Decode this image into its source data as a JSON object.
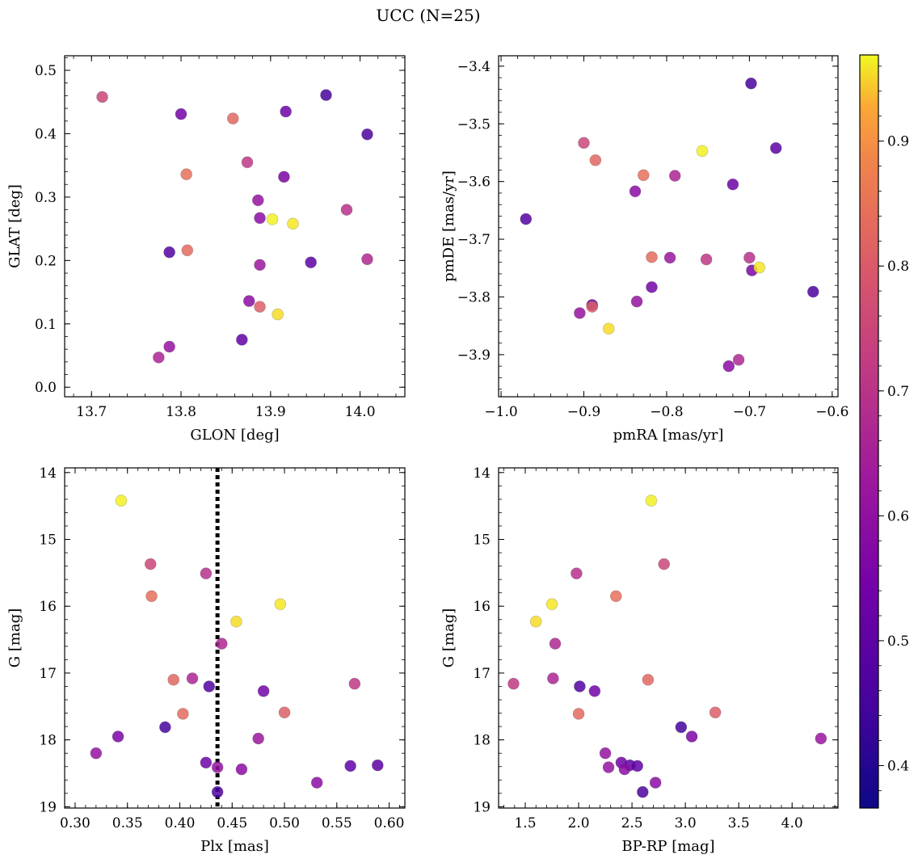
{
  "chart_data": {
    "type": "scatter",
    "title": "UCC (N=25)",
    "colorbar": {
      "colormap": "plasma",
      "min": 0.366,
      "max": 0.969,
      "ticks": [
        0.4,
        0.5,
        0.6,
        0.7,
        0.8,
        0.9
      ],
      "tick_labels": [
        "0.4",
        "0.5",
        "0.6",
        "0.7",
        "0.8",
        "0.9"
      ]
    },
    "stars": [
      {
        "glon": 13.712,
        "glat": 0.458,
        "pmra": -0.9,
        "pmde": -3.533,
        "plx": 0.372,
        "g": 15.37,
        "bprp": 2.8,
        "p": 0.66
      },
      {
        "glon": 13.806,
        "glat": 0.336,
        "pmra": -0.828,
        "pmde": -3.589,
        "plx": 0.373,
        "g": 15.85,
        "bprp": 2.35,
        "p": 0.76
      },
      {
        "glon": 13.858,
        "glat": 0.424,
        "pmra": -0.886,
        "pmde": -3.563,
        "plx": 0.394,
        "g": 17.1,
        "bprp": 2.65,
        "p": 0.74
      },
      {
        "glon": 13.807,
        "glat": 0.216,
        "pmra": -0.818,
        "pmde": -3.731,
        "plx": 0.403,
        "g": 17.61,
        "bprp": 2.0,
        "p": 0.75
      },
      {
        "glon": 13.888,
        "glat": 0.127,
        "pmra": -0.89,
        "pmde": -3.817,
        "plx": 0.5,
        "g": 17.59,
        "bprp": 3.28,
        "p": 0.72
      },
      {
        "glon": 13.902,
        "glat": 0.265,
        "pmra": -0.757,
        "pmde": -3.547,
        "plx": 0.344,
        "g": 14.42,
        "bprp": 2.68,
        "p": 0.96
      },
      {
        "glon": 13.925,
        "glat": 0.258,
        "pmra": -0.688,
        "pmde": -3.749,
        "plx": 0.496,
        "g": 15.97,
        "bprp": 1.75,
        "p": 0.95
      },
      {
        "glon": 13.908,
        "glat": 0.115,
        "pmra": -0.87,
        "pmde": -3.855,
        "plx": 0.454,
        "g": 16.23,
        "bprp": 1.6,
        "p": 0.94
      },
      {
        "glon": 13.874,
        "glat": 0.355,
        "pmra": -0.752,
        "pmde": -3.735,
        "plx": 0.567,
        "g": 17.16,
        "bprp": 1.39,
        "p": 0.62
      },
      {
        "glon": 13.985,
        "glat": 0.28,
        "pmra": -0.7,
        "pmde": -3.732,
        "plx": 0.425,
        "g": 15.51,
        "bprp": 1.98,
        "p": 0.6
      },
      {
        "glon": 14.008,
        "glat": 0.202,
        "pmra": -0.713,
        "pmde": -3.909,
        "plx": 0.44,
        "g": 16.56,
        "bprp": 1.78,
        "p": 0.58
      },
      {
        "glon": 13.775,
        "glat": 0.047,
        "pmra": -0.79,
        "pmde": -3.59,
        "plx": 0.412,
        "g": 17.08,
        "bprp": 1.76,
        "p": 0.57
      },
      {
        "glon": 13.888,
        "glat": 0.193,
        "pmra": -0.796,
        "pmde": -3.732,
        "plx": 0.475,
        "g": 17.98,
        "bprp": 4.27,
        "p": 0.53
      },
      {
        "glon": 13.886,
        "glat": 0.295,
        "pmra": -0.905,
        "pmde": -3.828,
        "plx": 0.32,
        "g": 18.2,
        "bprp": 2.25,
        "p": 0.52
      },
      {
        "glon": 13.787,
        "glat": 0.064,
        "pmra": -0.836,
        "pmde": -3.808,
        "plx": 0.436,
        "g": 18.41,
        "bprp": 2.28,
        "p": 0.52
      },
      {
        "glon": 13.876,
        "glat": 0.136,
        "pmra": -0.725,
        "pmde": -3.92,
        "plx": 0.459,
        "g": 18.44,
        "bprp": 2.43,
        "p": 0.5
      },
      {
        "glon": 13.888,
        "glat": 0.267,
        "pmra": -0.838,
        "pmde": -3.617,
        "plx": 0.531,
        "g": 18.64,
        "bprp": 2.72,
        "p": 0.5
      },
      {
        "glon": 13.915,
        "glat": 0.332,
        "pmra": -0.697,
        "pmde": -3.754,
        "plx": 0.341,
        "g": 17.95,
        "bprp": 3.06,
        "p": 0.47
      },
      {
        "glon": 13.8,
        "glat": 0.431,
        "pmra": -0.818,
        "pmde": -3.783,
        "plx": 0.48,
        "g": 17.27,
        "bprp": 2.15,
        "p": 0.45
      },
      {
        "glon": 13.917,
        "glat": 0.435,
        "pmra": -0.72,
        "pmde": -3.605,
        "plx": 0.425,
        "g": 18.34,
        "bprp": 2.4,
        "p": 0.44
      },
      {
        "glon": 13.868,
        "glat": 0.075,
        "pmra": -0.89,
        "pmde": -3.814,
        "plx": 0.563,
        "g": 18.39,
        "bprp": 2.55,
        "p": 0.42
      },
      {
        "glon": 13.945,
        "glat": 0.197,
        "pmra": -0.668,
        "pmde": -3.542,
        "plx": 0.589,
        "g": 18.38,
        "bprp": 2.48,
        "p": 0.41
      },
      {
        "glon": 13.787,
        "glat": 0.213,
        "pmra": -0.97,
        "pmde": -3.665,
        "plx": 0.428,
        "g": 17.2,
        "bprp": 2.01,
        "p": 0.39
      },
      {
        "glon": 14.008,
        "glat": 0.399,
        "pmra": -0.623,
        "pmde": -3.791,
        "plx": 0.436,
        "g": 18.78,
        "bprp": 2.6,
        "p": 0.38
      },
      {
        "glon": 13.962,
        "glat": 0.461,
        "pmra": -0.698,
        "pmde": -3.43,
        "plx": 0.386,
        "g": 17.81,
        "bprp": 2.96,
        "p": 0.37
      }
    ],
    "panels": [
      {
        "id": "glon-glat",
        "type": "scatter",
        "x_field": "glon",
        "y_field": "glat",
        "xlabel": "GLON [deg]",
        "ylabel": "GLAT [deg]",
        "xlim": [
          13.67,
          14.05
        ],
        "ylim": [
          -0.015,
          0.523
        ],
        "xticks": [
          13.7,
          13.8,
          13.9,
          14.0
        ],
        "xtick_labels": [
          "13.7",
          "13.8",
          "13.9",
          "14.0"
        ],
        "yticks": [
          0.0,
          0.1,
          0.2,
          0.3,
          0.4,
          0.5
        ],
        "ytick_labels": [
          "0.0",
          "0.1",
          "0.2",
          "0.3",
          "0.4",
          "0.5"
        ],
        "xminor": 0.02,
        "yminor": 0.02,
        "invert_y": false
      },
      {
        "id": "pm",
        "type": "scatter",
        "x_field": "pmra",
        "y_field": "pmde",
        "xlabel": "pmRA [mas/yr]",
        "ylabel": "pmDE [mas/yr]",
        "xlim": [
          -1.003,
          -0.593
        ],
        "ylim": [
          -3.973,
          -3.382
        ],
        "xticks": [
          -1.0,
          -0.9,
          -0.8,
          -0.7,
          -0.6
        ],
        "xtick_labels": [
          "−1.0",
          "−0.9",
          "−0.8",
          "−0.7",
          "−0.6"
        ],
        "yticks": [
          -3.9,
          -3.8,
          -3.7,
          -3.6,
          -3.5,
          -3.4
        ],
        "ytick_labels": [
          "−3.9",
          "−3.8",
          "−3.7",
          "−3.6",
          "−3.5",
          "−3.4"
        ],
        "xminor": 0.02,
        "yminor": 0.02,
        "invert_y": false
      },
      {
        "id": "plx-g",
        "type": "scatter",
        "x_field": "plx",
        "y_field": "g",
        "xlabel": "Plx [mas]",
        "ylabel": "G [mag]",
        "xlim": [
          0.29,
          0.615
        ],
        "ylim": [
          13.93,
          19.02
        ],
        "xticks": [
          0.3,
          0.35,
          0.4,
          0.45,
          0.5,
          0.55,
          0.6
        ],
        "xtick_labels": [
          "0.30",
          "0.35",
          "0.40",
          "0.45",
          "0.50",
          "0.55",
          "0.60"
        ],
        "yticks": [
          14,
          15,
          16,
          17,
          18,
          19
        ],
        "ytick_labels": [
          "14",
          "15",
          "16",
          "17",
          "18",
          "19"
        ],
        "xminor": 0.01,
        "yminor": 0.2,
        "invert_y": true,
        "vline": {
          "x": 0.436,
          "style": "dotted"
        }
      },
      {
        "id": "cmd",
        "type": "scatter",
        "x_field": "bprp",
        "y_field": "g",
        "xlabel": "BP-RP [mag]",
        "ylabel": "G [mag]",
        "xlim": [
          1.25,
          4.43
        ],
        "ylim": [
          13.93,
          19.02
        ],
        "xticks": [
          1.5,
          2.0,
          2.5,
          3.0,
          3.5,
          4.0
        ],
        "xtick_labels": [
          "1.5",
          "2.0",
          "2.5",
          "3.0",
          "3.5",
          "4.0"
        ],
        "yticks": [
          14,
          15,
          16,
          17,
          18,
          19
        ],
        "ytick_labels": [
          "14",
          "15",
          "16",
          "17",
          "18",
          "19"
        ],
        "xminor": 0.1,
        "yminor": 0.2,
        "invert_y": true
      }
    ]
  }
}
